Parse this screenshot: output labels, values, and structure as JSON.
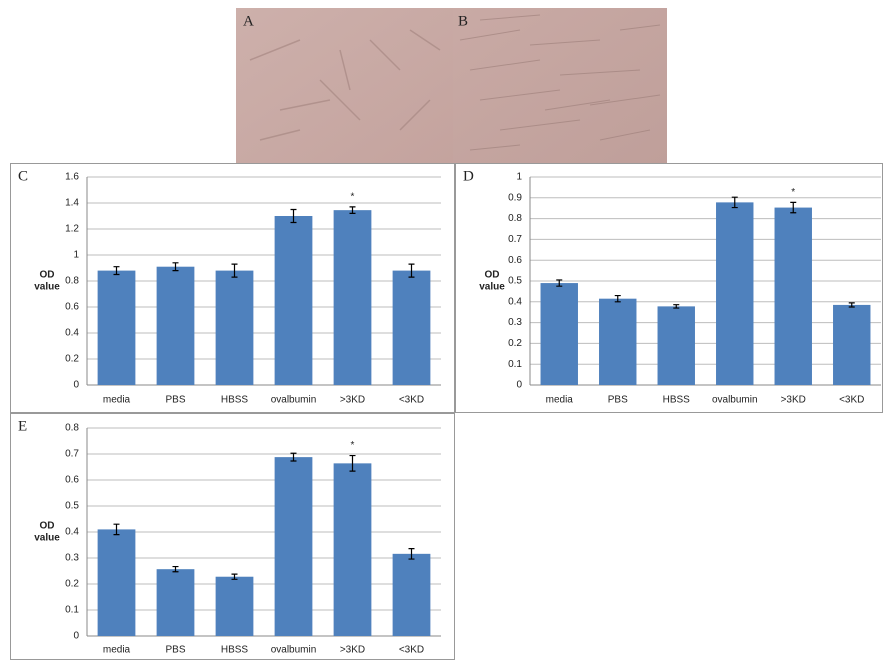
{
  "panels": [
    {
      "label": "A"
    },
    {
      "label": "B"
    }
  ],
  "chart_data": [
    {
      "type": "bar",
      "panel_label": "C",
      "ylabel_lines": [
        "OD",
        "value"
      ],
      "categories": [
        "media",
        "PBS",
        "HBSS",
        "ovalbumin",
        ">3KD",
        "<3KD"
      ],
      "values": [
        0.88,
        0.91,
        0.88,
        1.3,
        1.345,
        0.88
      ],
      "errors": [
        0.03,
        0.03,
        0.05,
        0.05,
        0.025,
        0.05
      ],
      "color": "#4f81bd",
      "ylim": [
        0,
        1.6
      ],
      "yticks": [
        0,
        0.2,
        0.4,
        0.6,
        0.8,
        1,
        1.2,
        1.4,
        1.6
      ],
      "grid": true,
      "annotations": [
        {
          "text": "*",
          "category": ">3KD"
        }
      ]
    },
    {
      "type": "bar",
      "panel_label": "D",
      "ylabel_lines": [
        "OD",
        "value"
      ],
      "categories": [
        "media",
        "PBS",
        "HBSS",
        "ovalbumin",
        ">3KD",
        "<3KD"
      ],
      "values": [
        0.49,
        0.415,
        0.378,
        0.878,
        0.853,
        0.385
      ],
      "errors": [
        0.015,
        0.015,
        0.008,
        0.025,
        0.025,
        0.01
      ],
      "color": "#4f81bd",
      "ylim": [
        0,
        1
      ],
      "yticks": [
        0,
        0.1,
        0.2,
        0.3,
        0.4,
        0.5,
        0.6,
        0.7,
        0.8,
        0.9,
        1
      ],
      "grid": true,
      "annotations": [
        {
          "text": "*",
          "category": ">3KD"
        }
      ]
    },
    {
      "type": "bar",
      "panel_label": "E",
      "ylabel_lines": [
        "OD",
        "value"
      ],
      "categories": [
        "media",
        "PBS",
        "HBSS",
        "ovalbumin",
        ">3KD",
        "<3KD"
      ],
      "values": [
        0.41,
        0.257,
        0.228,
        0.688,
        0.664,
        0.316
      ],
      "errors": [
        0.02,
        0.01,
        0.01,
        0.015,
        0.03,
        0.02
      ],
      "color": "#4f81bd",
      "ylim": [
        0,
        0.8
      ],
      "yticks": [
        0,
        0.1,
        0.2,
        0.3,
        0.4,
        0.5,
        0.6,
        0.7,
        0.8
      ],
      "grid": true,
      "annotations": [
        {
          "text": "*",
          "category": ">3KD"
        }
      ]
    }
  ]
}
